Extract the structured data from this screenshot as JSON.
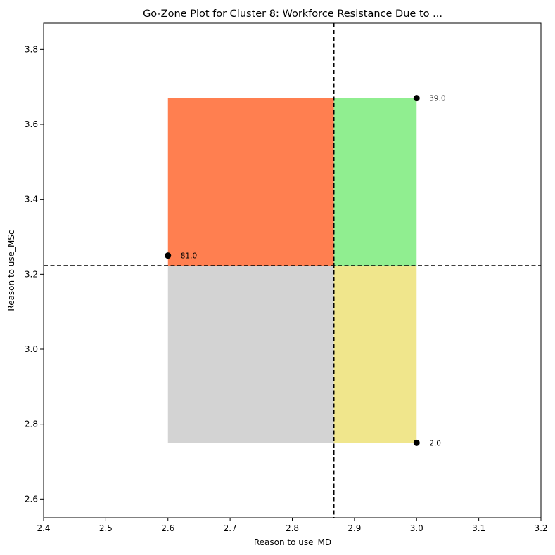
{
  "chart_data": {
    "type": "scatter",
    "title": "Go-Zone Plot for Cluster 8: Workforce Resistance Due to ...",
    "xlabel": "Reason to use_MD",
    "ylabel": "Reason to use_MSc",
    "xlim": [
      2.4,
      3.2
    ],
    "ylim": [
      2.55,
      3.87
    ],
    "xticks": [
      2.4,
      2.5,
      2.6,
      2.7,
      2.8,
      2.9,
      3.0,
      3.1,
      3.2
    ],
    "yticks": [
      2.6,
      2.8,
      3.0,
      3.2,
      3.4,
      3.6,
      3.8
    ],
    "grid": false,
    "mean_x": 2.867,
    "mean_y": 3.223,
    "quadrants": [
      {
        "name": "top-left",
        "x": [
          2.6,
          2.867
        ],
        "y": [
          3.223,
          3.67
        ],
        "color": "#ff7f50"
      },
      {
        "name": "top-right",
        "x": [
          2.867,
          3.0
        ],
        "y": [
          3.223,
          3.67
        ],
        "color": "#90ee90"
      },
      {
        "name": "bottom-left",
        "x": [
          2.6,
          2.867
        ],
        "y": [
          2.75,
          3.223
        ],
        "color": "#d3d3d3"
      },
      {
        "name": "bottom-right",
        "x": [
          2.867,
          3.0
        ],
        "y": [
          2.75,
          3.223
        ],
        "color": "#f0e68c"
      }
    ],
    "points": [
      {
        "label": "81.0",
        "x": 2.6,
        "y": 3.25
      },
      {
        "label": "39.0",
        "x": 3.0,
        "y": 3.67
      },
      {
        "label": "2.0",
        "x": 3.0,
        "y": 2.75
      }
    ],
    "point_color": "#000000",
    "mean_line_color": "#000000"
  }
}
